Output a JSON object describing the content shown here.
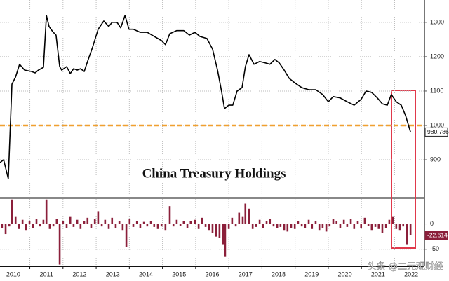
{
  "chart_data": [
    {
      "type": "line",
      "title": "China Treasury Holdings",
      "color": "#000000",
      "hline": 1000,
      "hline_color": "#f0a030",
      "xlim": [
        2010.1,
        2022.9
      ],
      "xticks": [
        2011,
        2012,
        2013,
        2014,
        2015,
        2016,
        2017,
        2018,
        2019,
        2020,
        2021,
        2022
      ],
      "ylim": [
        792,
        1365
      ],
      "yticks": [
        900,
        1000,
        1100,
        1200,
        1300
      ],
      "grid": true,
      "x": [
        2010.1,
        2010.21,
        2010.35,
        2010.46,
        2010.57,
        2010.69,
        2010.84,
        2011.05,
        2011.16,
        2011.26,
        2011.41,
        2011.5,
        2011.58,
        2011.69,
        2011.79,
        2011.9,
        2011.96,
        2012.11,
        2012.22,
        2012.32,
        2012.43,
        2012.53,
        2012.64,
        2012.74,
        2012.89,
        2013.06,
        2013.23,
        2013.38,
        2013.48,
        2013.63,
        2013.74,
        2013.87,
        2013.99,
        2014.12,
        2014.33,
        2014.54,
        2014.75,
        2014.97,
        2015.09,
        2015.22,
        2015.43,
        2015.64,
        2015.81,
        2015.98,
        2016.13,
        2016.34,
        2016.51,
        2016.66,
        2016.78,
        2016.87,
        2017.0,
        2017.12,
        2017.25,
        2017.4,
        2017.5,
        2017.61,
        2017.76,
        2017.93,
        2018.1,
        2018.24,
        2018.39,
        2018.52,
        2018.67,
        2018.82,
        2018.99,
        2019.2,
        2019.41,
        2019.62,
        2019.83,
        2020.0,
        2020.15,
        2020.36,
        2020.57,
        2020.78,
        2020.99,
        2021.14,
        2021.31,
        2021.48,
        2021.63,
        2021.78,
        2021.9,
        2022.05,
        2022.2,
        2022.33,
        2022.48
      ],
      "values": [
        892,
        900,
        845,
        1120,
        1141,
        1178,
        1161,
        1157,
        1153,
        1161,
        1169,
        1320,
        1288,
        1273,
        1263,
        1171,
        1161,
        1171,
        1151,
        1165,
        1161,
        1165,
        1157,
        1186,
        1227,
        1280,
        1304,
        1288,
        1300,
        1300,
        1284,
        1320,
        1280,
        1280,
        1271,
        1271,
        1259,
        1247,
        1235,
        1267,
        1276,
        1276,
        1263,
        1271,
        1259,
        1253,
        1222,
        1161,
        1100,
        1049,
        1059,
        1059,
        1100,
        1110,
        1171,
        1206,
        1178,
        1186,
        1182,
        1178,
        1192,
        1182,
        1161,
        1137,
        1124,
        1110,
        1104,
        1104,
        1090,
        1069,
        1084,
        1080,
        1069,
        1059,
        1076,
        1100,
        1096,
        1080,
        1063,
        1059,
        1090,
        1069,
        1059,
        1029,
        980.786
      ]
    },
    {
      "type": "bar",
      "color": "#8b1f3a",
      "xlim": [
        2010.1,
        2022.9
      ],
      "xticks": [
        2010,
        2011,
        2012,
        2013,
        2014,
        2015,
        2016,
        2017,
        2018,
        2019,
        2020,
        2021,
        2022
      ],
      "ylim": [
        -82,
        49
      ],
      "yticks": [
        -50,
        0
      ],
      "grid": true,
      "x": [
        2010.16,
        2010.27,
        2010.38,
        2010.46,
        2010.57,
        2010.67,
        2010.78,
        2010.88,
        2010.99,
        2011.09,
        2011.2,
        2011.31,
        2011.41,
        2011.5,
        2011.6,
        2011.71,
        2011.81,
        2011.9,
        2012.0,
        2012.11,
        2012.22,
        2012.32,
        2012.43,
        2012.53,
        2012.64,
        2012.74,
        2012.85,
        2012.96,
        2013.06,
        2013.17,
        2013.27,
        2013.38,
        2013.48,
        2013.59,
        2013.7,
        2013.8,
        2013.91,
        2014.01,
        2014.12,
        2014.23,
        2014.33,
        2014.44,
        2014.54,
        2014.65,
        2014.75,
        2014.86,
        2014.97,
        2015.09,
        2015.22,
        2015.33,
        2015.43,
        2015.54,
        2015.64,
        2015.75,
        2015.85,
        2015.98,
        2016.09,
        2016.19,
        2016.3,
        2016.4,
        2016.51,
        2016.62,
        2016.72,
        2016.83,
        2016.89,
        2017.0,
        2017.1,
        2017.21,
        2017.31,
        2017.42,
        2017.5,
        2017.61,
        2017.72,
        2017.82,
        2017.93,
        2018.03,
        2018.14,
        2018.24,
        2018.35,
        2018.46,
        2018.56,
        2018.67,
        2018.77,
        2018.88,
        2018.99,
        2019.09,
        2019.2,
        2019.3,
        2019.41,
        2019.51,
        2019.62,
        2019.73,
        2019.83,
        2019.94,
        2020.04,
        2020.15,
        2020.25,
        2020.36,
        2020.47,
        2020.57,
        2020.68,
        2020.78,
        2020.89,
        2020.99,
        2021.1,
        2021.21,
        2021.31,
        2021.42,
        2021.52,
        2021.63,
        2021.74,
        2021.84,
        2021.95,
        2022.05,
        2022.16,
        2022.26,
        2022.37,
        2022.48
      ],
      "values": [
        -8,
        -20,
        -5,
        48,
        15,
        -10,
        8,
        -12,
        5,
        -8,
        10,
        -5,
        8,
        48,
        -10,
        -5,
        10,
        -80,
        5,
        -8,
        15,
        -6,
        8,
        -10,
        5,
        12,
        -8,
        10,
        25,
        -5,
        8,
        -10,
        12,
        -8,
        6,
        -12,
        -45,
        10,
        -6,
        5,
        -8,
        4,
        -5,
        6,
        -6,
        -10,
        -5,
        -12,
        35,
        -5,
        8,
        -4,
        6,
        -8,
        5,
        8,
        -10,
        12,
        -6,
        -12,
        -18,
        -25,
        -28,
        -40,
        -65,
        -10,
        12,
        -5,
        22,
        15,
        40,
        30,
        -10,
        -6,
        8,
        -8,
        6,
        10,
        -5,
        -8,
        -6,
        -12,
        -15,
        -8,
        -10,
        6,
        -5,
        -8,
        8,
        -10,
        6,
        -12,
        -8,
        -15,
        -5,
        10,
        5,
        -8,
        8,
        -6,
        10,
        -10,
        5,
        -8,
        12,
        -4,
        -12,
        -6,
        -10,
        -18,
        -8,
        8,
        15,
        -10,
        -12,
        -5,
        -40,
        -22.614
      ]
    }
  ],
  "watermark": "头条 @二元观财经"
}
